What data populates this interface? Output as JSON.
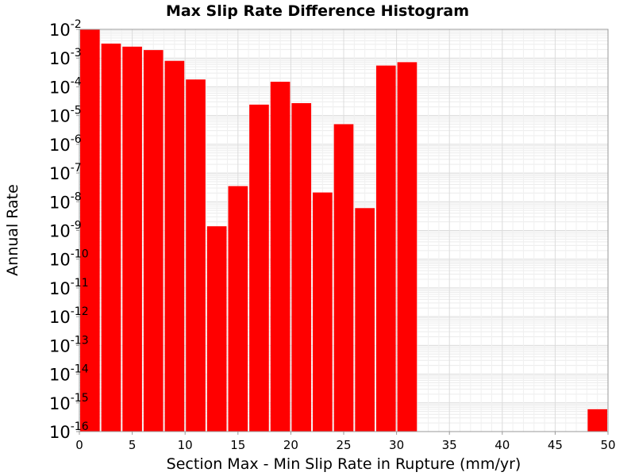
{
  "chart_data": {
    "type": "bar",
    "title": "Max Slip Rate Difference Histogram",
    "xlabel": "Section Max - Min Slip Rate in Rupture (mm/yr)",
    "ylabel": "Annual Rate",
    "x_ticks": [
      "0",
      "5",
      "10",
      "15",
      "20",
      "25",
      "30",
      "35",
      "40",
      "45",
      "50"
    ],
    "y_ticks": [
      {
        "base": "10",
        "exp": "-2"
      },
      {
        "base": "10",
        "exp": "-3"
      },
      {
        "base": "10",
        "exp": "-4"
      },
      {
        "base": "10",
        "exp": "-5"
      },
      {
        "base": "10",
        "exp": "-6"
      },
      {
        "base": "10",
        "exp": "-7"
      },
      {
        "base": "10",
        "exp": "-8"
      },
      {
        "base": "10",
        "exp": "-9"
      },
      {
        "base": "10",
        "exp": "-10"
      },
      {
        "base": "10",
        "exp": "-11"
      },
      {
        "base": "10",
        "exp": "-12"
      },
      {
        "base": "10",
        "exp": "-13"
      },
      {
        "base": "10",
        "exp": "-14"
      },
      {
        "base": "10",
        "exp": "-15"
      },
      {
        "base": "10",
        "exp": "-16"
      }
    ],
    "xlim": [
      0,
      50
    ],
    "ylim": [
      1e-16,
      0.01
    ],
    "y_scale": "log",
    "grid": true,
    "bar_color": "#ff0000",
    "bin_width": 2,
    "bars": [
      {
        "x": 1,
        "value": 0.01
      },
      {
        "x": 3,
        "value": 0.0032
      },
      {
        "x": 5,
        "value": 0.0025
      },
      {
        "x": 7,
        "value": 0.0019
      },
      {
        "x": 9,
        "value": 0.0008
      },
      {
        "x": 11,
        "value": 0.00018
      },
      {
        "x": 13,
        "value": 1.4e-09
      },
      {
        "x": 15,
        "value": 3.5e-08
      },
      {
        "x": 17,
        "value": 2.4e-05
      },
      {
        "x": 19,
        "value": 0.00015
      },
      {
        "x": 21,
        "value": 2.7e-05
      },
      {
        "x": 23,
        "value": 2.1e-08
      },
      {
        "x": 25,
        "value": 5e-06
      },
      {
        "x": 27,
        "value": 6e-09
      },
      {
        "x": 29,
        "value": 0.00055
      },
      {
        "x": 31,
        "value": 0.00072
      },
      {
        "x": 49,
        "value": 6e-16
      }
    ]
  }
}
